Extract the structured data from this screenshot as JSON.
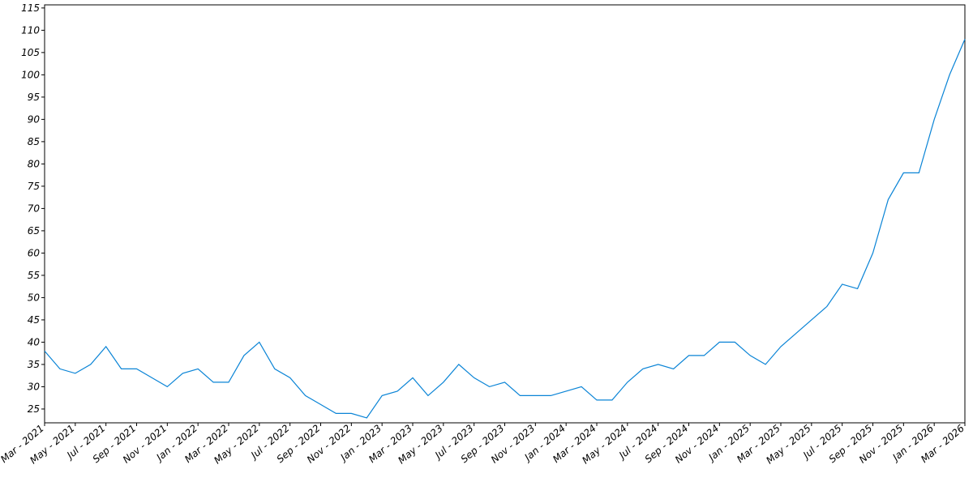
{
  "chart_data": {
    "type": "line",
    "x": [
      "2021-03",
      "2021-04",
      "2021-05",
      "2021-06",
      "2021-07",
      "2021-08",
      "2021-09",
      "2021-10",
      "2021-11",
      "2021-12",
      "2022-01",
      "2022-02",
      "2022-03",
      "2022-04",
      "2022-05",
      "2022-06",
      "2022-07",
      "2022-08",
      "2022-09",
      "2022-10",
      "2022-11",
      "2022-12",
      "2023-01",
      "2023-02",
      "2023-03",
      "2023-04",
      "2023-05",
      "2023-06",
      "2023-07",
      "2023-08",
      "2023-09",
      "2023-10",
      "2023-11",
      "2023-12",
      "2024-01",
      "2024-02",
      "2024-03",
      "2024-04",
      "2024-05",
      "2024-06",
      "2024-07",
      "2024-08",
      "2024-09",
      "2024-10",
      "2024-11",
      "2024-12",
      "2025-01",
      "2025-02",
      "2025-03",
      "2025-04",
      "2025-05",
      "2025-06",
      "2025-07",
      "2025-08",
      "2025-09",
      "2025-10",
      "2025-11",
      "2025-12",
      "2026-01",
      "2026-02",
      "2026-03"
    ],
    "series": [
      {
        "color": "#0a84d6",
        "values": [
          38,
          34,
          33,
          35,
          39,
          34,
          34,
          32,
          30,
          33,
          34,
          31,
          31,
          37,
          40,
          34,
          32,
          28,
          26,
          24,
          24,
          23,
          28,
          29,
          32,
          28,
          31,
          35,
          32,
          30,
          31,
          28,
          28,
          28,
          29,
          30,
          27,
          27,
          31,
          34,
          35,
          34,
          37,
          37,
          40,
          40,
          37,
          35,
          39,
          42,
          45,
          48,
          53,
          52,
          60,
          72,
          78,
          78,
          90,
          100,
          108
        ]
      }
    ],
    "xlim": [
      "2021-03",
      "2026-03"
    ],
    "xticks": [
      {
        "value": "2021-03",
        "label": "Mar - 2021"
      },
      {
        "value": "2021-05",
        "label": "May - 2021"
      },
      {
        "value": "2021-07",
        "label": "Jul - 2021"
      },
      {
        "value": "2021-09",
        "label": "Sep - 2021"
      },
      {
        "value": "2021-11",
        "label": "Nov - 2021"
      },
      {
        "value": "2022-01",
        "label": "Jan - 2022"
      },
      {
        "value": "2022-03",
        "label": "Mar - 2022"
      },
      {
        "value": "2022-05",
        "label": "May - 2022"
      },
      {
        "value": "2022-07",
        "label": "Jul - 2022"
      },
      {
        "value": "2022-09",
        "label": "Sep - 2022"
      },
      {
        "value": "2022-11",
        "label": "Nov - 2022"
      },
      {
        "value": "2023-01",
        "label": "Jan - 2023"
      },
      {
        "value": "2023-03",
        "label": "Mar - 2023"
      },
      {
        "value": "2023-05",
        "label": "May - 2023"
      },
      {
        "value": "2023-07",
        "label": "Jul - 2023"
      },
      {
        "value": "2023-09",
        "label": "Sep - 2023"
      },
      {
        "value": "2023-11",
        "label": "Nov - 2023"
      },
      {
        "value": "2024-01",
        "label": "Jan - 2024"
      },
      {
        "value": "2024-03",
        "label": "Mar - 2024"
      },
      {
        "value": "2024-05",
        "label": "May - 2024"
      },
      {
        "value": "2024-07",
        "label": "Jul - 2024"
      },
      {
        "value": "2024-09",
        "label": "Sep - 2024"
      },
      {
        "value": "2024-11",
        "label": "Nov - 2024"
      },
      {
        "value": "2025-01",
        "label": "Jan - 2025"
      },
      {
        "value": "2025-03",
        "label": "Mar - 2025"
      },
      {
        "value": "2025-05",
        "label": "May - 2025"
      },
      {
        "value": "2025-07",
        "label": "Jul - 2025"
      },
      {
        "value": "2025-09",
        "label": "Sep - 2025"
      },
      {
        "value": "2025-11",
        "label": "Nov - 2025"
      },
      {
        "value": "2026-01",
        "label": "Jan - 2026"
      },
      {
        "value": "2026-03",
        "label": "Mar - 2026"
      }
    ],
    "ylim": [
      21.9,
      115.7
    ],
    "yticks": [
      25,
      30,
      35,
      40,
      45,
      50,
      55,
      60,
      65,
      70,
      75,
      80,
      85,
      90,
      95,
      100,
      105,
      110,
      115
    ]
  }
}
